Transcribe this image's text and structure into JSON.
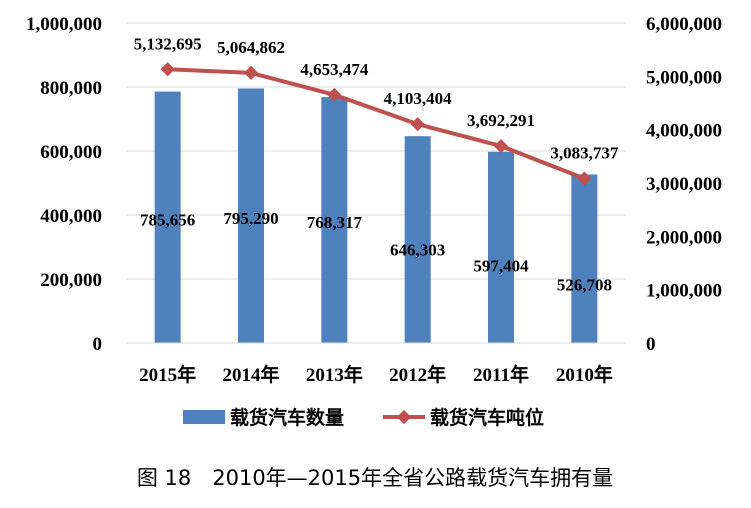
{
  "chart_data": {
    "type": "bar+line",
    "title": "图 18　2010年—2015年全省公路载货汽车拥有量",
    "categories": [
      "2015年",
      "2014年",
      "2013年",
      "2012年",
      "2011年",
      "2010年"
    ],
    "series": [
      {
        "name": "载货汽车数量",
        "type": "bar",
        "axis": "left",
        "color": "#4F81BD",
        "values": [
          785656,
          795290,
          768317,
          646303,
          597404,
          526708
        ],
        "labels": [
          "785,656",
          "795,290",
          "768,317",
          "646,303",
          "597,404",
          "526,708"
        ]
      },
      {
        "name": "载货汽车吨位",
        "type": "line",
        "axis": "right",
        "color": "#C0504D",
        "values": [
          5132695,
          5064862,
          4653474,
          4103404,
          3692291,
          3083737
        ],
        "labels": [
          "5,132,695",
          "5,064,862",
          "4,653,474",
          "4,103,404",
          "3,692,291",
          "3,083,737"
        ]
      }
    ],
    "left_axis": {
      "ylim": [
        0,
        1000000
      ],
      "ticks": [
        "0",
        "200,000",
        "400,000",
        "600,000",
        "800,000",
        "1,000,000"
      ]
    },
    "right_axis": {
      "ylim": [
        0,
        6000000
      ],
      "ticks": [
        "0",
        "1,000,000",
        "2,000,000",
        "3,000,000",
        "4,000,000",
        "5,000,000",
        "6,000,000"
      ]
    },
    "grid": true,
    "legend": "bottom"
  }
}
